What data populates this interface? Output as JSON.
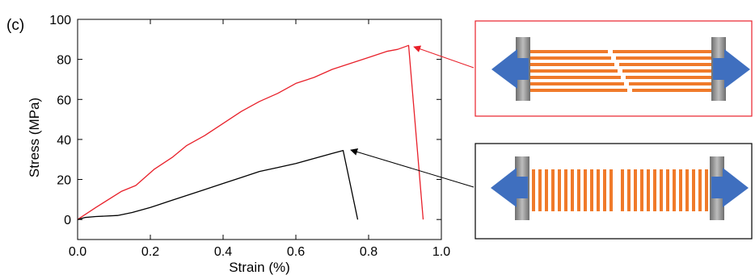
{
  "panel_label": "(c)",
  "chart_data": {
    "type": "line",
    "title": "",
    "xlabel": "Strain (%)",
    "ylabel": "Stress (MPa)",
    "xlim": [
      0.0,
      1.0
    ],
    "ylim": [
      -10,
      100
    ],
    "xticks": [
      "0.0",
      "0.2",
      "0.4",
      "0.6",
      "0.8",
      "1.0"
    ],
    "yticks": [
      "0",
      "20",
      "40",
      "60",
      "80",
      "100"
    ],
    "xtick_values": [
      0.0,
      0.2,
      0.4,
      0.6,
      0.8,
      1.0
    ],
    "ytick_values": [
      0,
      20,
      40,
      60,
      80,
      100
    ],
    "grid": false,
    "legend": "none",
    "series": [
      {
        "color": "#e8202a",
        "x": [
          0.0,
          0.05,
          0.12,
          0.16,
          0.21,
          0.26,
          0.3,
          0.35,
          0.4,
          0.45,
          0.5,
          0.55,
          0.6,
          0.65,
          0.7,
          0.75,
          0.8,
          0.85,
          0.88,
          0.91,
          0.95
        ],
        "y": [
          0,
          6,
          14,
          17,
          25,
          31,
          37,
          42,
          48,
          54,
          59,
          63,
          68,
          71,
          75,
          78,
          81,
          84,
          85,
          87,
          0
        ]
      },
      {
        "color": "#000000",
        "x": [
          0.0,
          0.02,
          0.05,
          0.11,
          0.15,
          0.2,
          0.25,
          0.3,
          0.35,
          0.4,
          0.45,
          0.5,
          0.55,
          0.6,
          0.65,
          0.7,
          0.73,
          0.77
        ],
        "y": [
          0,
          1,
          1.5,
          2,
          3.5,
          6,
          9,
          12,
          15,
          18,
          21,
          24,
          26,
          28,
          30.5,
          33,
          34.5,
          0
        ]
      }
    ]
  },
  "schematics": {
    "fiber_color": "#f07a2a",
    "arrow_color": "#3f6fbf",
    "grip_color": "#8a8a8a",
    "top_border_color": "#e8202a",
    "bottom_border_color": "#000000",
    "top_icon": "fractured-continuous-fibers",
    "bottom_icon": "short-chopped-fibers"
  }
}
